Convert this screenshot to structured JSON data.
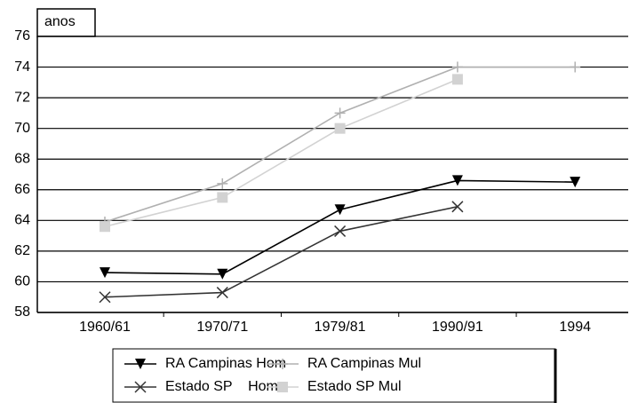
{
  "chart_data": {
    "type": "line",
    "y_label": "anos",
    "categories": [
      "1960/61",
      "1970/71",
      "1979/81",
      "1990/91",
      "1994"
    ],
    "series": [
      {
        "name": "RA Campinas Hom",
        "color": "#000000",
        "marker": "triangle",
        "values": [
          60.6,
          60.5,
          64.7,
          66.6,
          66.5
        ]
      },
      {
        "name": "RA Campinas Mul",
        "color": "#b0b0b0",
        "marker": "plus",
        "values": [
          63.9,
          66.4,
          71.0,
          74.0,
          74.0
        ]
      },
      {
        "name": "Estado SP    Hom",
        "color": "#333333",
        "marker": "x",
        "values": [
          59.0,
          59.3,
          63.3,
          64.9,
          null
        ]
      },
      {
        "name": "Estado SP Mul",
        "color": "#d2d2d2",
        "marker": "square",
        "values": [
          63.6,
          65.5,
          70.0,
          73.2,
          null
        ]
      }
    ],
    "ylim": [
      58,
      76
    ],
    "yticks": [
      58,
      60,
      62,
      64,
      66,
      68,
      70,
      72,
      74,
      76
    ],
    "grid": true
  }
}
